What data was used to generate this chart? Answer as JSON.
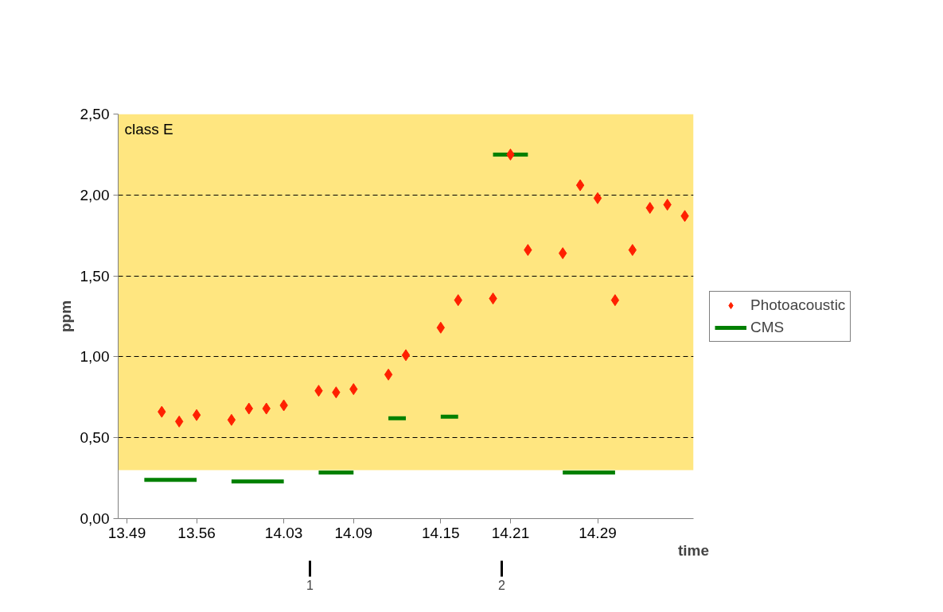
{
  "chart_data": {
    "type": "scatter",
    "xlabel": "time",
    "ylabel": "ppm",
    "categories": [
      "13.49",
      null,
      null,
      null,
      "13.56",
      null,
      null,
      null,
      null,
      "14.03",
      null,
      null,
      null,
      "14.09",
      null,
      null,
      null,
      null,
      "14.15",
      null,
      null,
      null,
      "14.21",
      null,
      null,
      null,
      null,
      "14.29",
      null,
      null,
      null,
      null,
      null
    ],
    "ylim": [
      0,
      2.5
    ],
    "yticks": [
      {
        "value": 0,
        "label": "0,00"
      },
      {
        "value": 0.5,
        "label": "0,50"
      },
      {
        "value": 1,
        "label": "1,00"
      },
      {
        "value": 1.5,
        "label": "1,50"
      },
      {
        "value": 2,
        "label": "2,00"
      },
      {
        "value": 2.5,
        "label": "2,50"
      }
    ],
    "grid": "y",
    "legend": "right",
    "series": [
      {
        "name": "Photoacoustic",
        "color": "#ff2000",
        "marker": "diamond",
        "values": [
          null,
          null,
          0.66,
          0.6,
          0.64,
          null,
          0.61,
          0.68,
          0.68,
          0.7,
          null,
          0.79,
          0.78,
          0.8,
          null,
          0.89,
          1.01,
          null,
          1.18,
          1.35,
          null,
          1.36,
          2.25,
          1.66,
          null,
          1.64,
          2.06,
          1.98,
          1.35,
          1.66,
          1.92,
          1.94,
          1.87
        ]
      },
      {
        "name": "CMS",
        "type": "line",
        "color": "#008000",
        "values": [
          null,
          0.24,
          0.24,
          0.24,
          0.24,
          null,
          0.23,
          0.23,
          0.23,
          0.23,
          null,
          0.285,
          0.285,
          0.285,
          null,
          0.62,
          0.62,
          null,
          0.63,
          0.63,
          null,
          2.25,
          2.25,
          2.25,
          null,
          0.285,
          0.285,
          0.285,
          0.285,
          null,
          null,
          null,
          null
        ]
      }
    ],
    "bands": [
      {
        "axis": "y",
        "from": 0.3,
        "to": 2.5,
        "label": "class E",
        "color": "#ffe680"
      }
    ],
    "annotations": [
      "1",
      "2"
    ]
  }
}
